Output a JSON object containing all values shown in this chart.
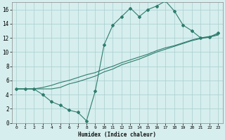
{
  "xlabel": "Humidex (Indice chaleur)",
  "bg_color": "#d6eeee",
  "grid_color": "#aacece",
  "line_color": "#2e7d6e",
  "xlim": [
    -0.5,
    23.5
  ],
  "ylim": [
    0,
    17
  ],
  "xticks": [
    0,
    1,
    2,
    3,
    4,
    5,
    6,
    7,
    8,
    9,
    10,
    11,
    12,
    13,
    14,
    15,
    16,
    17,
    18,
    19,
    20,
    21,
    22,
    23
  ],
  "yticks": [
    0,
    2,
    4,
    6,
    8,
    10,
    12,
    14,
    16
  ],
  "line1_x": [
    0,
    1,
    2,
    3,
    4,
    5,
    6,
    7,
    8,
    9,
    10,
    11,
    12,
    13,
    14,
    15,
    16,
    17,
    18,
    19,
    20,
    21,
    22,
    23
  ],
  "line1_y": [
    4.8,
    4.8,
    4.8,
    4.0,
    3.0,
    2.5,
    1.8,
    1.5,
    0.3,
    4.5,
    11.0,
    13.8,
    15.0,
    16.2,
    15.0,
    16.0,
    16.5,
    17.2,
    15.8,
    13.8,
    13.0,
    12.0,
    12.1,
    12.7
  ],
  "line2_x": [
    0,
    1,
    2,
    3,
    4,
    5,
    6,
    7,
    8,
    9,
    10,
    11,
    12,
    13,
    14,
    15,
    16,
    17,
    18,
    19,
    20,
    21,
    22,
    23
  ],
  "line2_y": [
    4.8,
    4.8,
    4.8,
    4.8,
    4.8,
    5.0,
    5.5,
    5.8,
    6.2,
    6.6,
    7.2,
    7.6,
    8.2,
    8.6,
    9.0,
    9.5,
    10.0,
    10.4,
    10.8,
    11.2,
    11.6,
    11.9,
    12.1,
    12.4
  ],
  "line3_x": [
    0,
    1,
    2,
    3,
    4,
    5,
    6,
    7,
    8,
    9,
    10,
    11,
    12,
    13,
    14,
    15,
    16,
    17,
    18,
    19,
    20,
    21,
    22,
    23
  ],
  "line3_y": [
    4.8,
    4.8,
    4.8,
    5.0,
    5.3,
    5.7,
    6.0,
    6.4,
    6.8,
    7.1,
    7.6,
    8.0,
    8.5,
    8.9,
    9.3,
    9.7,
    10.2,
    10.6,
    10.9,
    11.3,
    11.7,
    12.0,
    12.2,
    12.5
  ]
}
